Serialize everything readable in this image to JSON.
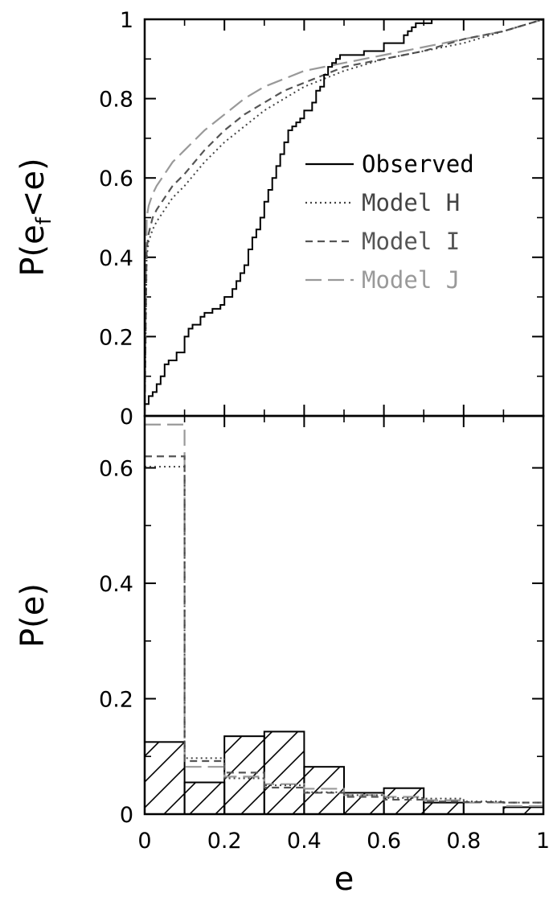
{
  "chart_data": [
    {
      "panel": "top",
      "type": "line",
      "xlabel": "",
      "ylabel": "P(e_f<e)",
      "ylabel_parts": {
        "main": "P(e",
        "sub": "f",
        "rest": "<e)"
      },
      "xlim": [
        0,
        1
      ],
      "ylim": [
        0,
        1
      ],
      "yticks": [
        0,
        0.2,
        0.4,
        0.6,
        0.8,
        1
      ],
      "ytick_labels": [
        "0",
        "0.2",
        "0.4",
        "0.6",
        "0.8",
        "1"
      ],
      "legend_position": "right-middle",
      "series": [
        {
          "name": "Observed",
          "color": "#000000",
          "style": "solid",
          "step": true,
          "x": [
            0.0,
            0.01,
            0.02,
            0.03,
            0.04,
            0.05,
            0.06,
            0.08,
            0.1,
            0.11,
            0.12,
            0.14,
            0.15,
            0.17,
            0.19,
            0.2,
            0.22,
            0.23,
            0.24,
            0.25,
            0.26,
            0.27,
            0.28,
            0.29,
            0.3,
            0.31,
            0.32,
            0.33,
            0.34,
            0.35,
            0.36,
            0.37,
            0.38,
            0.39,
            0.4,
            0.42,
            0.43,
            0.44,
            0.45,
            0.46,
            0.47,
            0.48,
            0.49,
            0.5,
            0.55,
            0.6,
            0.65,
            0.66,
            0.67,
            0.68,
            0.72,
            0.8,
            0.9,
            1.0
          ],
          "y": [
            0.03,
            0.05,
            0.06,
            0.08,
            0.1,
            0.13,
            0.14,
            0.16,
            0.2,
            0.22,
            0.23,
            0.25,
            0.26,
            0.27,
            0.28,
            0.3,
            0.32,
            0.34,
            0.36,
            0.38,
            0.42,
            0.45,
            0.47,
            0.5,
            0.54,
            0.57,
            0.6,
            0.63,
            0.66,
            0.69,
            0.72,
            0.73,
            0.74,
            0.75,
            0.77,
            0.79,
            0.82,
            0.83,
            0.86,
            0.88,
            0.89,
            0.9,
            0.91,
            0.91,
            0.92,
            0.94,
            0.96,
            0.97,
            0.98,
            0.99,
            1.0,
            1.0,
            1.0,
            1.0
          ]
        },
        {
          "name": "Model H",
          "color": "#444444",
          "style": "dotted",
          "x": [
            0.0,
            0.005,
            0.01,
            0.02,
            0.03,
            0.05,
            0.07,
            0.1,
            0.15,
            0.2,
            0.25,
            0.3,
            0.35,
            0.4,
            0.5,
            0.6,
            0.7,
            0.8,
            0.9,
            1.0
          ],
          "y": [
            0.0,
            0.4,
            0.44,
            0.47,
            0.49,
            0.52,
            0.55,
            0.58,
            0.64,
            0.69,
            0.73,
            0.77,
            0.8,
            0.83,
            0.87,
            0.9,
            0.92,
            0.94,
            0.97,
            1.0
          ]
        },
        {
          "name": "Model I",
          "color": "#555555",
          "style": "dashed",
          "x": [
            0.0,
            0.005,
            0.01,
            0.02,
            0.03,
            0.05,
            0.07,
            0.1,
            0.15,
            0.2,
            0.25,
            0.3,
            0.35,
            0.4,
            0.5,
            0.6,
            0.7,
            0.8,
            0.9,
            1.0
          ],
          "y": [
            0.0,
            0.42,
            0.46,
            0.5,
            0.52,
            0.55,
            0.58,
            0.61,
            0.67,
            0.72,
            0.76,
            0.79,
            0.82,
            0.84,
            0.88,
            0.9,
            0.92,
            0.95,
            0.97,
            1.0
          ]
        },
        {
          "name": "Model J",
          "color": "#999999",
          "style": "long-dash",
          "x": [
            0.0,
            0.005,
            0.01,
            0.02,
            0.03,
            0.05,
            0.07,
            0.1,
            0.15,
            0.2,
            0.25,
            0.3,
            0.35,
            0.4,
            0.5,
            0.6,
            0.7,
            0.8,
            0.9,
            1.0
          ],
          "y": [
            0.0,
            0.5,
            0.53,
            0.56,
            0.58,
            0.61,
            0.64,
            0.67,
            0.72,
            0.76,
            0.8,
            0.83,
            0.85,
            0.87,
            0.89,
            0.91,
            0.93,
            0.95,
            0.97,
            1.0
          ]
        }
      ]
    },
    {
      "panel": "bottom",
      "type": "bar",
      "xlabel": "e",
      "ylabel": "P(e)",
      "xlim": [
        0,
        1
      ],
      "ylim": [
        0,
        0.69
      ],
      "xticks": [
        0,
        0.2,
        0.4,
        0.6,
        0.8,
        1
      ],
      "xtick_labels": [
        "0",
        "0.2",
        "0.4",
        "0.6",
        "0.8",
        "1"
      ],
      "yticks": [
        0,
        0.2,
        0.4,
        0.6
      ],
      "ytick_labels": [
        "0",
        "0.2",
        "0.4",
        "0.6"
      ],
      "bin_edges": [
        0,
        0.1,
        0.2,
        0.3,
        0.4,
        0.5,
        0.6,
        0.7,
        0.8,
        0.9,
        1.0
      ],
      "observed": {
        "name": "Observed",
        "style": "hatched",
        "color": "#000000",
        "values": [
          0.125,
          0.055,
          0.135,
          0.143,
          0.082,
          0.037,
          0.045,
          0.02,
          0.0,
          0.012
        ]
      },
      "series": [
        {
          "name": "Model H",
          "color": "#444444",
          "style": "dotted",
          "values": [
            0.602,
            0.097,
            0.062,
            0.05,
            0.038,
            0.033,
            0.028,
            0.027,
            0.022,
            0.02
          ]
        },
        {
          "name": "Model I",
          "color": "#555555",
          "style": "dashed",
          "values": [
            0.62,
            0.092,
            0.072,
            0.046,
            0.037,
            0.03,
            0.025,
            0.022,
            0.021,
            0.02
          ]
        },
        {
          "name": "Model J",
          "color": "#999999",
          "style": "long-dash",
          "values": [
            0.675,
            0.082,
            0.065,
            0.052,
            0.044,
            0.033,
            0.03,
            0.024,
            0.02,
            0.014
          ]
        }
      ]
    }
  ]
}
